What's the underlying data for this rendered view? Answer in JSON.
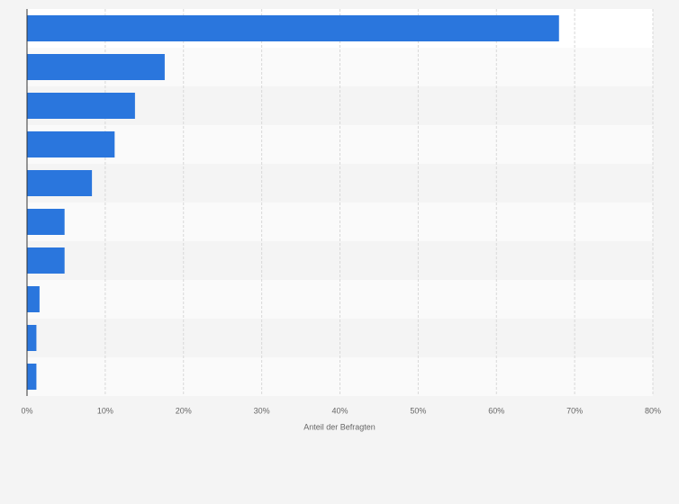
{
  "chart_data": {
    "type": "bar",
    "orientation": "horizontal",
    "xlabel": "Anteil der Befragten",
    "categories": [
      null,
      null,
      null,
      null,
      null,
      null,
      null,
      null,
      null,
      null
    ],
    "values": [
      68,
      17.6,
      13.8,
      11.2,
      8.3,
      4.8,
      4.8,
      1.6,
      1.2,
      1.2
    ],
    "color": "#2a76dd",
    "xlim": [
      0,
      80
    ],
    "xticks": [
      {
        "value": 0,
        "label": "0%"
      },
      {
        "value": 10,
        "label": "10%"
      },
      {
        "value": 20,
        "label": "20%"
      },
      {
        "value": 30,
        "label": "30%"
      },
      {
        "value": 40,
        "label": "40%"
      },
      {
        "value": 50,
        "label": "50%"
      },
      {
        "value": 60,
        "label": "60%"
      },
      {
        "value": 70,
        "label": "70%"
      },
      {
        "value": 80,
        "label": "80%"
      }
    ],
    "grid": true
  }
}
